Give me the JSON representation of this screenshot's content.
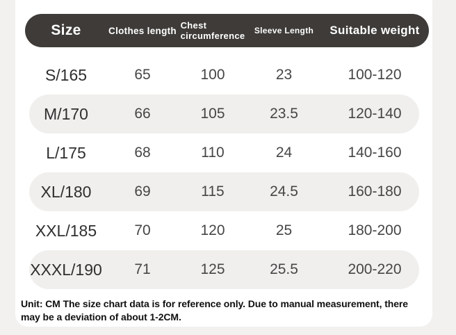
{
  "colors": {
    "page_background": "#f2f1ef",
    "card_background": "#ffffff",
    "header_background": "#3e3b39",
    "header_text": "#ffffff",
    "alt_row_background": "#f0efed",
    "row_text": "#454545"
  },
  "table": {
    "header": {
      "size": "Size",
      "clothes_length": "Clothes length",
      "chest_line1": "Chest",
      "chest_line2": "circumference",
      "sleeve_length": "Sleeve Length",
      "suitable_weight": "Suitable weight"
    },
    "rows": [
      {
        "size": "S/165",
        "clothes_length": "65",
        "chest": "100",
        "sleeve": "23",
        "weight": "100-120"
      },
      {
        "size": "M/170",
        "clothes_length": "66",
        "chest": "105",
        "sleeve": "23.5",
        "weight": "120-140"
      },
      {
        "size": "L/175",
        "clothes_length": "68",
        "chest": "110",
        "sleeve": "24",
        "weight": "140-160"
      },
      {
        "size": "XL/180",
        "clothes_length": "69",
        "chest": "115",
        "sleeve": "24.5",
        "weight": "160-180"
      },
      {
        "size": "XXL/185",
        "clothes_length": "70",
        "chest": "120",
        "sleeve": "25",
        "weight": "180-200"
      },
      {
        "size": "XXXL/190",
        "clothes_length": "71",
        "chest": "125",
        "sleeve": "25.5",
        "weight": "200-220"
      }
    ]
  },
  "footer": {
    "note_line1": "Unit: CM The size chart data is for reference only. Due to manual measurement, there",
    "note_line2": "may be a deviation of about 1-2CM."
  },
  "chart_data": {
    "type": "table",
    "title": "Garment size chart",
    "unit": "CM",
    "columns": [
      "Size",
      "Clothes length",
      "Chest circumference",
      "Sleeve Length",
      "Suitable weight"
    ],
    "rows": [
      [
        "S/165",
        65,
        100,
        23,
        "100-120"
      ],
      [
        "M/170",
        66,
        105,
        23.5,
        "120-140"
      ],
      [
        "L/175",
        68,
        110,
        24,
        "140-160"
      ],
      [
        "XL/180",
        69,
        115,
        24.5,
        "160-180"
      ],
      [
        "XXL/185",
        70,
        120,
        25,
        "180-200"
      ],
      [
        "XXXL/190",
        71,
        125,
        25.5,
        "200-220"
      ]
    ],
    "note": "Unit: CM The size chart data is for reference only. Due to manual measurement, there may be a deviation of about 1-2CM."
  }
}
